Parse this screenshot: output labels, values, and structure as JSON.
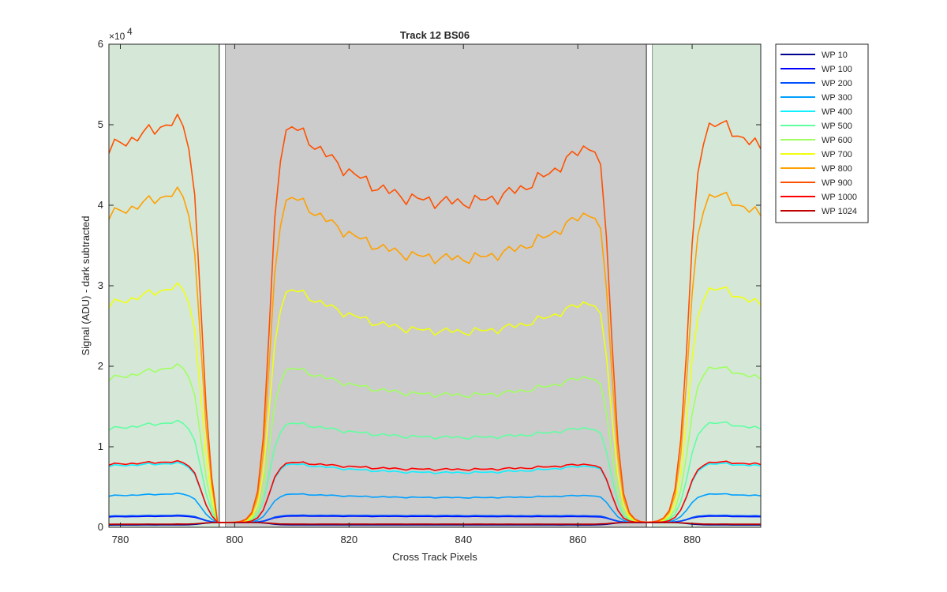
{
  "chart_data": {
    "type": "line",
    "title": "Track 12  BS06",
    "xlabel": "Cross Track Pixels",
    "ylabel": "Signal (ADU) - dark subtracted",
    "y_exponent_base": "×10",
    "y_exponent_power": "4",
    "xlim": [
      778,
      892
    ],
    "ylim": [
      0,
      60000
    ],
    "xticks": [
      780,
      800,
      820,
      840,
      860,
      880
    ],
    "yticks": [
      0,
      10000,
      20000,
      30000,
      40000,
      50000,
      60000
    ],
    "ytick_labels": [
      "0",
      "1",
      "2",
      "3",
      "4",
      "5",
      "6"
    ],
    "grid": false,
    "legend_position": "outside-top-right",
    "background_regions": [
      {
        "type": "active",
        "x_range": [
          778,
          797.3
        ],
        "color": "#d5e8d8"
      },
      {
        "type": "slit",
        "x_range": [
          797.3,
          798.4
        ],
        "color": "#ffffff"
      },
      {
        "type": "shadowed",
        "x_range": [
          798.4,
          872
        ],
        "color": "#cccccc"
      },
      {
        "type": "slit",
        "x_range": [
          872,
          873.1
        ],
        "color": "#ffffff"
      },
      {
        "type": "active",
        "x_range": [
          873.1,
          892
        ],
        "color": "#d5e8d8"
      }
    ],
    "series": [
      {
        "name": "WP 10",
        "color": "#00008f",
        "peak": 300,
        "edge": 280,
        "curve": 0
      },
      {
        "name": "WP 100",
        "color": "#0000ff",
        "peak": 1400,
        "edge": 1300,
        "curve": 50
      },
      {
        "name": "WP 200",
        "color": "#0050ff",
        "peak": 1500,
        "edge": 1400,
        "curve": 50
      },
      {
        "name": "WP 300",
        "color": "#00a0ff",
        "peak": 4200,
        "edge": 3900,
        "curve": 500
      },
      {
        "name": "WP 400",
        "color": "#10f0ff",
        "peak": 8000,
        "edge": 7600,
        "curve": 1200
      },
      {
        "name": "WP 500",
        "color": "#60ffa0",
        "peak": 13200,
        "edge": 12200,
        "curve": 2000
      },
      {
        "name": "WP 600",
        "color": "#a0ff60",
        "peak": 20200,
        "edge": 18400,
        "curve": 3700
      },
      {
        "name": "WP 700",
        "color": "#f0ff10",
        "peak": 30200,
        "edge": 27600,
        "curve": 5800
      },
      {
        "name": "WP 800",
        "color": "#ffa000",
        "peak": 42000,
        "edge": 38700,
        "curve": 8500
      },
      {
        "name": "WP 900",
        "color": "#ff5000",
        "peak": 51000,
        "edge": 47000,
        "curve": 10500
      },
      {
        "name": "WP 1000",
        "color": "#ff0000",
        "peak": 8200,
        "edge": 7800,
        "curve": 1000
      },
      {
        "name": "WP 1024",
        "color": "#c00000",
        "peak": 400,
        "edge": 380,
        "curve": 0
      }
    ]
  }
}
